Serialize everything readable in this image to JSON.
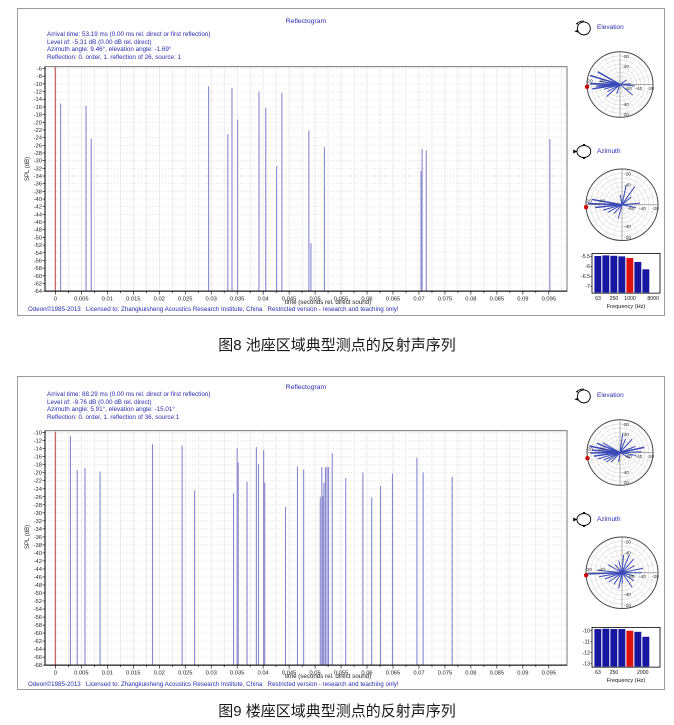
{
  "figures": [
    {
      "caption": "图8 池座区域典型测点的反射声序列"
    },
    {
      "caption": "图9 楼座区域典型测点的反射声序列"
    }
  ],
  "panels": [
    {
      "info_lines": [
        "Arrival time: 53.19 ms (0.00 ms rel. direct or first reflection)",
        "Level of: -5.31 dB (0.00 dB rel. direct)",
        "Azimuth angle: 9.46°, elevation angle: -1.69°",
        "Reflection: 0. order, 1. reflection of 26, source: 1"
      ],
      "footer": "Odeon©1985-2013   Licensed to: Zhangkuisheng Acoustics Research Institute, China   Restricted version - research and teaching only!",
      "elevation_label": "Elevation",
      "azimuth_label": "Azimuth"
    },
    {
      "info_lines": [
        "Arrival time: 88.29 ms (0.00 ms rel. direct or first reflection)",
        "Level of: -9.76 dB (0.00 dB rel. direct)",
        "Azimuth angle: 5.91°, elevation angle: -15.01°",
        "Reflection: 0. order, 1. reflection of 36, source:1"
      ],
      "footer": "Odeon©1985-2013   Licensed to: Zhangkuisheng Acoustics Research Institute, China   Restricted version - research and teaching only!",
      "elevation_label": "Elevation",
      "azimuth_label": "Azimuth"
    }
  ],
  "chart_data": [
    {
      "type": "bar",
      "title": "Reflectogram",
      "xlabel": "time (seconds rel. direct sound)",
      "ylabel": "SPL (dB)",
      "xlim": [
        -0.002,
        0.0985
      ],
      "ylim_draw": [
        -64,
        -5.5
      ],
      "ytick_start": -6,
      "ytick_end": -64,
      "ytick_step": 2,
      "xtick_step": 0.005,
      "xtick_max": 0.095,
      "grid_minor_step": 0.0025,
      "direct_sound": {
        "time_s": 0.0,
        "level_db": -5.31
      },
      "reflections": [
        [
          0.001,
          -15.1
        ],
        [
          0.0059,
          -15.7
        ],
        [
          0.0069,
          -24.3
        ],
        [
          0.0295,
          -10.6
        ],
        [
          0.0332,
          -23.1
        ],
        [
          0.034,
          -11.0
        ],
        [
          0.0351,
          -19.3
        ],
        [
          0.0392,
          -12.0
        ],
        [
          0.0405,
          -16.2
        ],
        [
          0.0426,
          -31.4
        ],
        [
          0.0436,
          -12.3
        ],
        [
          0.0488,
          -22.2
        ],
        [
          0.0492,
          -51.5
        ],
        [
          0.0518,
          -26.5
        ],
        [
          0.0704,
          -32.7
        ],
        [
          0.0706,
          -26.9
        ],
        [
          0.0714,
          -27.3
        ],
        [
          0.0952,
          -24.4
        ]
      ],
      "polar_elevation": {
        "label": "Elevation",
        "ring_labels": [
          "-20",
          "-40",
          "-60"
        ],
        "marker_angle_deg": 184,
        "spokes": [
          [
            150,
            0.78
          ],
          [
            163,
            0.95
          ],
          [
            171,
            0.62
          ],
          [
            178,
            0.9
          ],
          [
            184,
            0.72
          ],
          [
            189,
            0.85
          ],
          [
            197,
            0.5
          ],
          [
            210,
            0.44
          ],
          [
            222,
            0.55
          ],
          [
            250,
            0.3
          ],
          [
            -40,
            0.5
          ],
          [
            -6,
            0.45
          ],
          [
            4,
            0.34
          ],
          [
            35,
            0.24
          ]
        ]
      },
      "polar_azimuth": {
        "label": "Azimuth",
        "ring_labels": [
          "-20",
          "-40",
          "-60"
        ],
        "marker_angle_deg": 184,
        "spokes": [
          [
            78,
            0.55
          ],
          [
            55,
            0.62
          ],
          [
            40,
            0.34
          ],
          [
            5,
            0.5
          ],
          [
            -12,
            0.4
          ],
          [
            170,
            0.85
          ],
          [
            178,
            0.95
          ],
          [
            186,
            0.75
          ],
          [
            196,
            0.55
          ],
          [
            208,
            0.45
          ],
          [
            228,
            0.34
          ],
          [
            255,
            0.4
          ],
          [
            100,
            0.28
          ]
        ]
      },
      "frequency_chart": {
        "xlabel": "Frequency (Hz)",
        "yticks": [
          -5.5,
          -6,
          -6.5,
          -7
        ],
        "ylim_draw": [
          -7.35,
          -5.35
        ],
        "bands_hz": [
          63,
          125,
          250,
          500,
          1000,
          2000,
          4000
        ],
        "values_db": [
          -5.48,
          -5.45,
          -5.47,
          -5.5,
          -5.58,
          -5.78,
          -6.15
        ],
        "highlight_band_hz": 1000,
        "xtick_labels": [
          {
            "pos": 0,
            "label": "63"
          },
          {
            "pos": 2,
            "label": "250"
          },
          {
            "pos": 4,
            "label": "1000"
          },
          {
            "pos": 6.9,
            "label": "8000"
          }
        ]
      }
    },
    {
      "type": "bar",
      "title": "Reflectogram",
      "xlabel": "time (seconds rel. direct sound)",
      "ylabel": "SPL (dB)",
      "xlim": [
        -0.002,
        0.0985
      ],
      "ylim_draw": [
        -68,
        -9.5
      ],
      "ytick_start": -10,
      "ytick_end": -68,
      "ytick_step": 2,
      "xtick_step": 0.005,
      "xtick_max": 0.095,
      "grid_minor_step": 0.0025,
      "direct_sound": {
        "time_s": 0.0,
        "level_db": -9.76
      },
      "reflections": [
        [
          0.0029,
          -10.8
        ],
        [
          0.0042,
          -19.3
        ],
        [
          0.0057,
          -18.8
        ],
        [
          0.0086,
          -19.7
        ],
        [
          0.0187,
          -12.9
        ],
        [
          0.0244,
          -13.2
        ],
        [
          0.0268,
          -24.4
        ],
        [
          0.0343,
          -25.1
        ],
        [
          0.035,
          -13.9
        ],
        [
          0.0352,
          -17.5
        ],
        [
          0.0369,
          -22.2
        ],
        [
          0.0387,
          -13.6
        ],
        [
          0.0391,
          -17.8
        ],
        [
          0.0401,
          -14.4
        ],
        [
          0.0403,
          -22.5
        ],
        [
          0.0443,
          -28.5
        ],
        [
          0.0466,
          -18.4
        ],
        [
          0.0478,
          -19.2
        ],
        [
          0.051,
          -26.0
        ],
        [
          0.0513,
          -18.6
        ],
        [
          0.0515,
          -25.8
        ],
        [
          0.0517,
          -22.5
        ],
        [
          0.052,
          -18.7
        ],
        [
          0.0523,
          -18.5
        ],
        [
          0.0526,
          -18.6
        ],
        [
          0.0533,
          -15.1
        ],
        [
          0.0559,
          -21.3
        ],
        [
          0.0592,
          -19.9
        ],
        [
          0.0609,
          -26.1
        ],
        [
          0.0626,
          -23.3
        ],
        [
          0.0649,
          -20.2
        ],
        [
          0.0696,
          -16.2
        ],
        [
          0.0708,
          -19.9
        ],
        [
          0.0764,
          -21.0
        ]
      ],
      "polar_elevation": {
        "label": "Elevation",
        "ring_labels": [
          "-20",
          "-40",
          "-60"
        ],
        "marker_angle_deg": 190,
        "spokes": [
          [
            150,
            0.6
          ],
          [
            158,
            0.75
          ],
          [
            168,
            0.95
          ],
          [
            175,
            0.85
          ],
          [
            181,
            0.9
          ],
          [
            188,
            0.8
          ],
          [
            196,
            0.7
          ],
          [
            205,
            0.55
          ],
          [
            215,
            0.5
          ],
          [
            228,
            0.4
          ],
          [
            262,
            0.3
          ],
          [
            -30,
            0.35
          ],
          [
            -10,
            0.5
          ],
          [
            2,
            0.65
          ],
          [
            12,
            0.75
          ],
          [
            22,
            0.5
          ],
          [
            48,
            0.55
          ],
          [
            68,
            0.45
          ],
          [
            82,
            0.6
          ]
        ]
      },
      "polar_azimuth": {
        "label": "Azimuth",
        "ring_labels": [
          "-20",
          "-40",
          "-60"
        ],
        "marker_angle_deg": 184,
        "spokes": [
          [
            182,
            0.95
          ],
          [
            174,
            0.7
          ],
          [
            190,
            0.65
          ],
          [
            200,
            0.5
          ],
          [
            215,
            0.45
          ],
          [
            235,
            0.4
          ],
          [
            258,
            0.45
          ],
          [
            272,
            0.3
          ],
          [
            -55,
            0.5
          ],
          [
            -35,
            0.4
          ],
          [
            -15,
            0.35
          ],
          [
            0,
            0.55
          ],
          [
            12,
            0.6
          ],
          [
            30,
            0.4
          ],
          [
            50,
            0.5
          ],
          [
            68,
            0.55
          ],
          [
            85,
            0.5
          ],
          [
            105,
            0.35
          ],
          [
            130,
            0.3
          ],
          [
            150,
            0.45
          ]
        ]
      },
      "frequency_chart": {
        "xlabel": "Frequency (Hz)",
        "yticks": [
          -10,
          -11,
          -12,
          -13
        ],
        "ylim_draw": [
          -13.3,
          -9.7
        ],
        "bands_hz": [
          63,
          125,
          250,
          500,
          1000,
          2000,
          4000
        ],
        "values_db": [
          -9.85,
          -9.82,
          -9.85,
          -9.85,
          -10.0,
          -10.1,
          -10.55
        ],
        "highlight_band_hz": 1000,
        "xtick_labels": [
          {
            "pos": 0,
            "label": "63"
          },
          {
            "pos": 2,
            "label": "250"
          },
          {
            "pos": 5.6,
            "label": "2000"
          }
        ]
      }
    }
  ],
  "colors": {
    "blue_text": "#2a2ab0",
    "reflection_bar": "#8888cf",
    "direct_sound_bar": "#c66a6a",
    "freq_bar": "#16169e",
    "freq_bar_highlight": "#dd1111",
    "polar_spoke": "#3a4ab8",
    "marker_dot": "#cc0000"
  }
}
